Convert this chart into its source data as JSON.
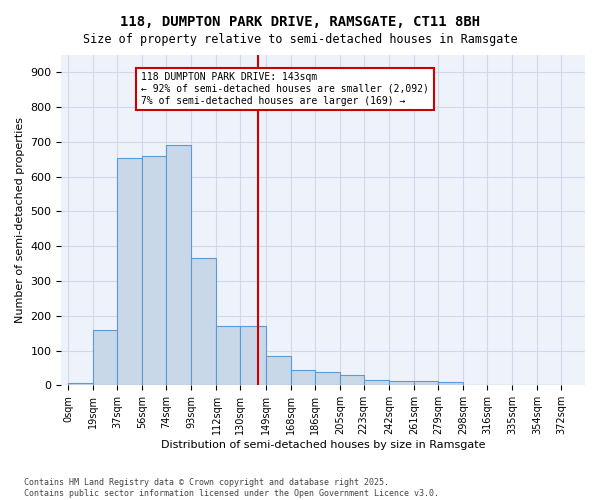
{
  "title": "118, DUMPTON PARK DRIVE, RAMSGATE, CT11 8BH",
  "subtitle": "Size of property relative to semi-detached houses in Ramsgate",
  "xlabel": "Distribution of semi-detached houses by size in Ramsgate",
  "ylabel": "Number of semi-detached properties",
  "bar_color": "#c8d8e8",
  "bar_edge_color": "#5b9bd5",
  "background_color": "#eef2fa",
  "grid_color": "#d0d8ec",
  "annotation_text": "118 DUMPTON PARK DRIVE: 143sqm\n← 92% of semi-detached houses are smaller (2,092)\n7% of semi-detached houses are larger (169) →",
  "vline_x": 143,
  "vline_color": "#cc0000",
  "annotation_box_color": "#cc0000",
  "categories": [
    "0sqm",
    "19sqm",
    "37sqm",
    "56sqm",
    "74sqm",
    "93sqm",
    "112sqm",
    "130sqm",
    "149sqm",
    "168sqm",
    "186sqm",
    "205sqm",
    "223sqm",
    "242sqm",
    "261sqm",
    "279sqm",
    "298sqm",
    "316sqm",
    "335sqm",
    "354sqm",
    "372sqm"
  ],
  "bin_left_edges": [
    0,
    19,
    37,
    56,
    74,
    93,
    112,
    130,
    149,
    168,
    186,
    205,
    223,
    242,
    261,
    279,
    298,
    316,
    335,
    354
  ],
  "bin_widths": [
    19,
    18,
    19,
    18,
    19,
    19,
    18,
    19,
    19,
    18,
    19,
    18,
    19,
    19,
    18,
    19,
    18,
    19,
    19,
    18
  ],
  "bar_heights": [
    8,
    160,
    655,
    660,
    690,
    365,
    170,
    170,
    85,
    45,
    37,
    30,
    15,
    13,
    13,
    10,
    0,
    0,
    0,
    0
  ],
  "ylim": [
    0,
    950
  ],
  "yticks": [
    0,
    100,
    200,
    300,
    400,
    500,
    600,
    700,
    800,
    900
  ],
  "footnote": "Contains HM Land Registry data © Crown copyright and database right 2025.\nContains public sector information licensed under the Open Government Licence v3.0."
}
